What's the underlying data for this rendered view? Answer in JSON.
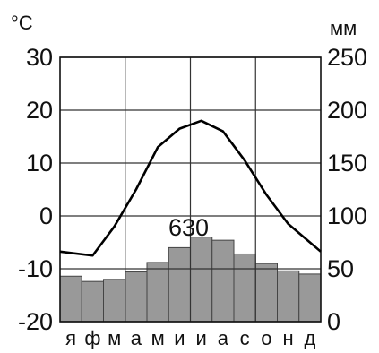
{
  "chart_data": {
    "type": "bar",
    "title": "",
    "categories": [
      "я",
      "ф",
      "м",
      "а",
      "м",
      "и",
      "и",
      "а",
      "с",
      "о",
      "н",
      "д"
    ],
    "left_axis": {
      "unit": "°C",
      "ylim": [
        -20,
        30
      ],
      "ticks": [
        "30",
        "20",
        "10",
        "0",
        "-10",
        "-20"
      ]
    },
    "right_axis": {
      "unit": "мм",
      "ylim": [
        0,
        250
      ],
      "ticks": [
        "250",
        "200",
        "150",
        "100",
        "50",
        "0"
      ]
    },
    "series": [
      {
        "type": "line",
        "axis": "left",
        "unit": "°C",
        "values": [
          -7,
          -7.5,
          -2,
          5,
          13,
          16.5,
          18,
          16,
          10.5,
          4,
          -1.5,
          -5
        ]
      },
      {
        "type": "bar",
        "axis": "right",
        "unit": "мм",
        "values": [
          43,
          38,
          40,
          47,
          56,
          70,
          80,
          77,
          64,
          55,
          48,
          45
        ]
      }
    ],
    "annotations": [
      {
        "text": "630"
      }
    ],
    "grid": true,
    "colors": {
      "bar": "#999999",
      "line": "#000000",
      "grid": "#333333"
    }
  }
}
